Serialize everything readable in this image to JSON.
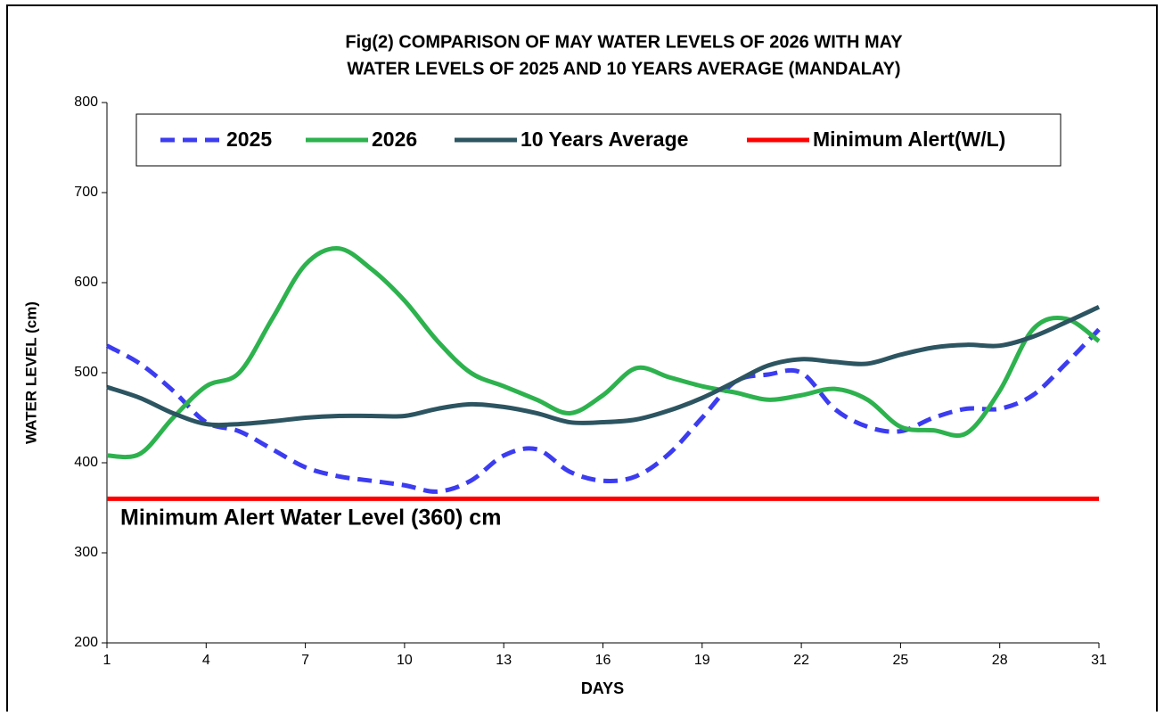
{
  "chart_data": {
    "type": "line",
    "title": [
      "Fig(2)  COMPARISON OF MAY WATER  LEVELS OF 2026  WITH MAY",
      "WATER  LEVELS OF 2025  AND 10 YEARS  AVERAGE  (MANDALAY)"
    ],
    "x_label": "DAYS",
    "y_label": "WATER LEVEL (cm)",
    "annotation": "Minimum Alert Water Level (360) cm",
    "x": [
      1,
      2,
      3,
      4,
      5,
      6,
      7,
      8,
      9,
      10,
      11,
      12,
      13,
      14,
      15,
      16,
      17,
      18,
      19,
      20,
      21,
      22,
      23,
      24,
      25,
      26,
      27,
      28,
      29,
      30,
      31
    ],
    "series": [
      {
        "name": "2025",
        "color": "#3c3cf0",
        "dashed": true,
        "values": [
          530,
          510,
          480,
          445,
          435,
          415,
          395,
          385,
          380,
          375,
          368,
          380,
          408,
          415,
          390,
          380,
          385,
          410,
          450,
          490,
          498,
          500,
          460,
          440,
          435,
          450,
          460,
          460,
          475,
          510,
          548
        ]
      },
      {
        "name": "2026",
        "color": "#2db24e",
        "values": [
          408,
          410,
          450,
          485,
          500,
          560,
          620,
          638,
          615,
          580,
          535,
          500,
          485,
          470,
          455,
          475,
          505,
          495,
          485,
          478,
          470,
          475,
          482,
          470,
          440,
          436,
          433,
          480,
          548,
          560,
          535
        ]
      },
      {
        "name": "10 Years Average",
        "color": "#2c5461",
        "values": [
          484,
          472,
          455,
          443,
          443,
          446,
          450,
          452,
          452,
          452,
          460,
          465,
          462,
          455,
          445,
          445,
          448,
          458,
          472,
          490,
          508,
          515,
          512,
          510,
          520,
          528,
          531,
          530,
          540,
          556,
          573
        ]
      },
      {
        "name": "Minimum Alert(W/L)",
        "color": "#ff0000",
        "values": [
          360,
          360,
          360,
          360,
          360,
          360,
          360,
          360,
          360,
          360,
          360,
          360,
          360,
          360,
          360,
          360,
          360,
          360,
          360,
          360,
          360,
          360,
          360,
          360,
          360,
          360,
          360,
          360,
          360,
          360,
          360
        ]
      }
    ],
    "xlim": [
      1,
      31
    ],
    "xticks": [
      1,
      4,
      7,
      10,
      13,
      16,
      19,
      22,
      25,
      28,
      31
    ],
    "ylim": [
      200,
      800
    ],
    "yticks": [
      200,
      300,
      400,
      500,
      600,
      700,
      800
    ],
    "grid": false,
    "legend": "top"
  }
}
